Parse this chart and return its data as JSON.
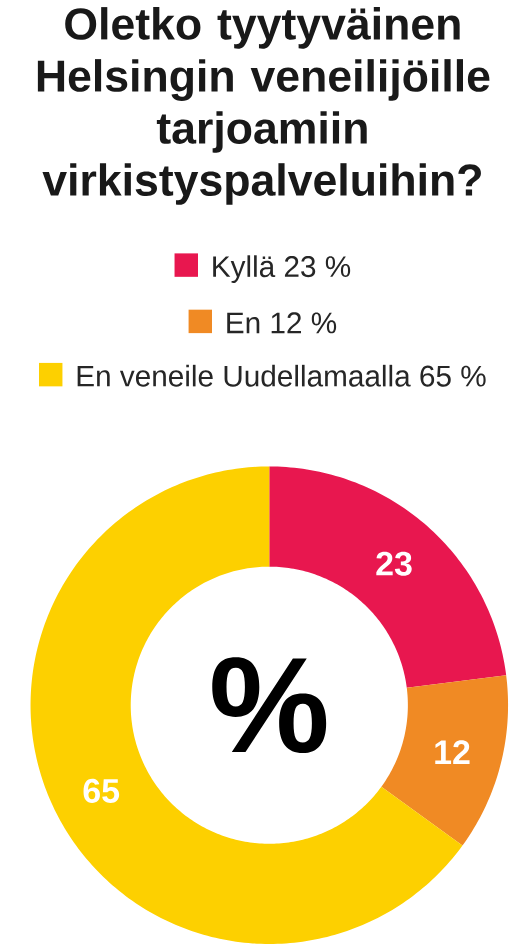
{
  "chart_data": {
    "type": "donut",
    "title": "Oletko tyytyväinen Helsingin veneilijöille tarjoamiin virkistyspalveluihin?",
    "categories": [
      "Kyllä 23 %",
      "En 12 %",
      "En veneile Uudellamaalla 65 %"
    ],
    "values": [
      23,
      12,
      65
    ],
    "colors": [
      "#e8174f",
      "#f08a24",
      "#fdd000"
    ],
    "legend": "top",
    "data_labels": true,
    "annotations": [
      "%"
    ]
  }
}
